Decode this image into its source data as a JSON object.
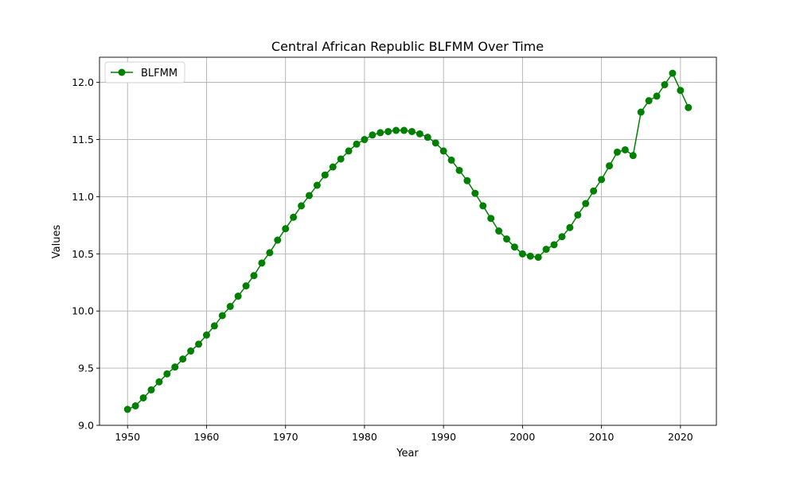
{
  "chart_data": {
    "type": "line",
    "title": "Central African Republic BLFMM Over Time",
    "xlabel": "Year",
    "ylabel": "Values",
    "xlim": [
      1946.45,
      2024.55
    ],
    "ylim": [
      9.0,
      12.22
    ],
    "xticks": [
      1950,
      1960,
      1970,
      1980,
      1990,
      2000,
      2010,
      2020
    ],
    "yticks": [
      9.0,
      9.5,
      10.0,
      10.5,
      11.0,
      11.5,
      12.0
    ],
    "ytick_labels": [
      "9.0",
      "9.5",
      "10.0",
      "10.5",
      "11.0",
      "11.5",
      "12.0"
    ],
    "grid": true,
    "legend_position": "top-left",
    "series": [
      {
        "name": "BLFMM",
        "color": "#008000",
        "marker": "circle",
        "x": [
          1950,
          1951,
          1952,
          1953,
          1954,
          1955,
          1956,
          1957,
          1958,
          1959,
          1960,
          1961,
          1962,
          1963,
          1964,
          1965,
          1966,
          1967,
          1968,
          1969,
          1970,
          1971,
          1972,
          1973,
          1974,
          1975,
          1976,
          1977,
          1978,
          1979,
          1980,
          1981,
          1982,
          1983,
          1984,
          1985,
          1986,
          1987,
          1988,
          1989,
          1990,
          1991,
          1992,
          1993,
          1994,
          1995,
          1996,
          1997,
          1998,
          1999,
          2000,
          2001,
          2002,
          2003,
          2004,
          2005,
          2006,
          2007,
          2008,
          2009,
          2010,
          2011,
          2012,
          2013,
          2014,
          2015,
          2016,
          2017,
          2018,
          2019,
          2020,
          2021
        ],
        "y": [
          9.14,
          9.17,
          9.24,
          9.31,
          9.38,
          9.45,
          9.51,
          9.58,
          9.65,
          9.71,
          9.79,
          9.87,
          9.96,
          10.04,
          10.13,
          10.22,
          10.31,
          10.42,
          10.51,
          10.62,
          10.72,
          10.82,
          10.92,
          11.01,
          11.1,
          11.19,
          11.26,
          11.33,
          11.4,
          11.46,
          11.5,
          11.54,
          11.56,
          11.57,
          11.58,
          11.58,
          11.57,
          11.55,
          11.52,
          11.47,
          11.4,
          11.32,
          11.23,
          11.14,
          11.03,
          10.92,
          10.81,
          10.7,
          10.63,
          10.56,
          10.5,
          10.48,
          10.47,
          10.54,
          10.58,
          10.65,
          10.73,
          10.84,
          10.94,
          11.05,
          11.15,
          11.27,
          11.39,
          11.41,
          11.36,
          11.74,
          11.84,
          11.88,
          11.98,
          12.08,
          11.93,
          11.78
        ]
      }
    ]
  }
}
